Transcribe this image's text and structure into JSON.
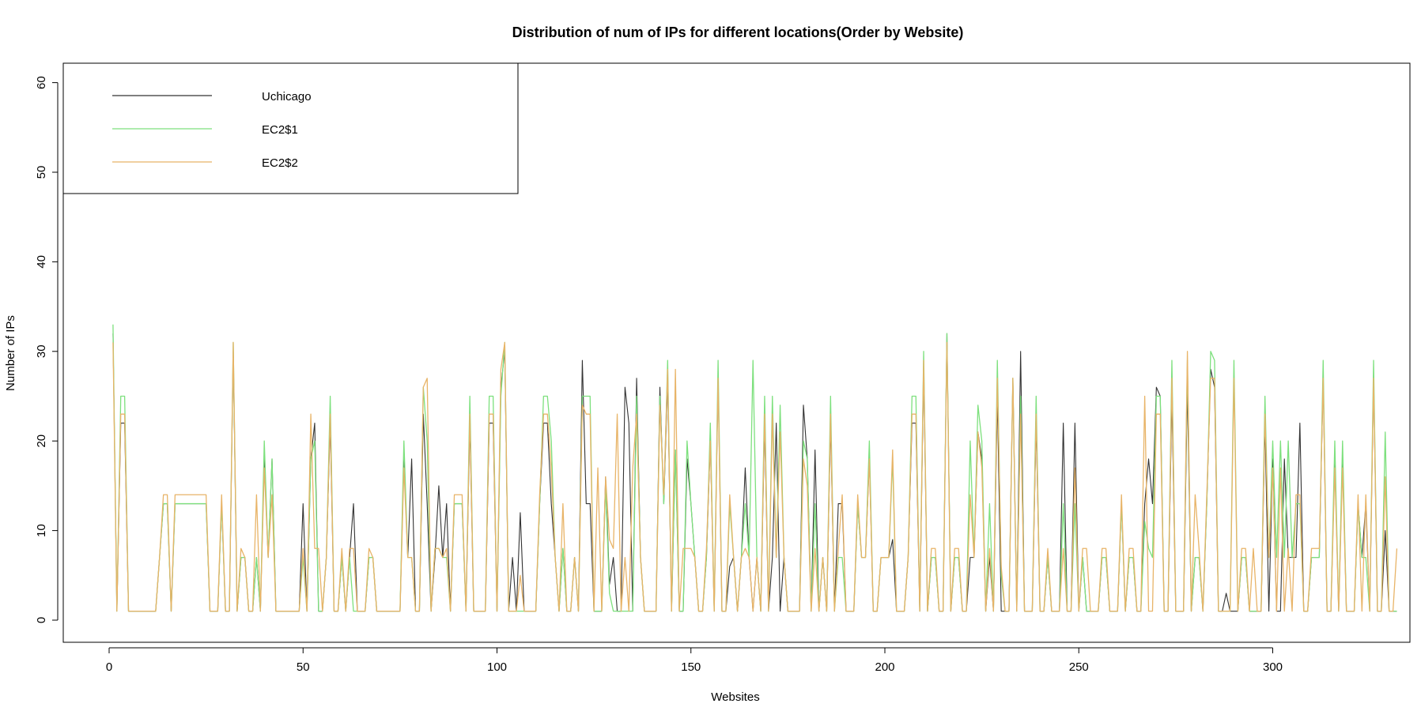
{
  "chart_data": {
    "type": "line",
    "title": "Distribution of num of IPs for different locations(Order by Website)",
    "xlabel": "Websites",
    "ylabel": "Number of IPs",
    "xlim": [
      1,
      322
    ],
    "ylim": [
      0,
      60
    ],
    "xticks": [
      0,
      50,
      100,
      150,
      200,
      250,
      300
    ],
    "yticks": [
      0,
      10,
      20,
      30,
      40,
      50,
      60
    ],
    "legend_position": "top-left",
    "grid": false,
    "series": [
      {
        "name": "Uchicago",
        "color": "#333333",
        "values": [
          32,
          1,
          22,
          22,
          1,
          1,
          1,
          1,
          1,
          1,
          1,
          1,
          7,
          13,
          13,
          1,
          13,
          13,
          13,
          13,
          13,
          13,
          13,
          13,
          13,
          1,
          1,
          1,
          13,
          1,
          1,
          30,
          1,
          7,
          7,
          1,
          1,
          7,
          1,
          18,
          7,
          18,
          1,
          1,
          1,
          1,
          1,
          1,
          1,
          13,
          1,
          18,
          22,
          1,
          1,
          7,
          22,
          1,
          1,
          7,
          1,
          7,
          13,
          1,
          1,
          1,
          7,
          7,
          1,
          1,
          1,
          1,
          1,
          1,
          1,
          18,
          7,
          18,
          1,
          1,
          23,
          13,
          1,
          7,
          15,
          7,
          13,
          1,
          13,
          13,
          13,
          1,
          22,
          1,
          1,
          1,
          1,
          22,
          22,
          1,
          26,
          30,
          1,
          7,
          1,
          12,
          1,
          1,
          1,
          1,
          13,
          22,
          22,
          13,
          7,
          1,
          8,
          1,
          1,
          7,
          1,
          29,
          13,
          13,
          1,
          1,
          1,
          16,
          4,
          7,
          1,
          1,
          26,
          22,
          1,
          27,
          7,
          1,
          1,
          1,
          1,
          26,
          13,
          27,
          1,
          19,
          1,
          1,
          18,
          13,
          7,
          1,
          1,
          7,
          20,
          1,
          27,
          1,
          1,
          6,
          7,
          1,
          7,
          17,
          7,
          1,
          7,
          1,
          22,
          1,
          7,
          22,
          1,
          7,
          1,
          1,
          1,
          1,
          24,
          18,
          1,
          19,
          1,
          7,
          1,
          22,
          1,
          13,
          13,
          1,
          1,
          1,
          13,
          7,
          7,
          18,
          1,
          1,
          7,
          7,
          7,
          9,
          1,
          1,
          1,
          7,
          22,
          22,
          1,
          28,
          1,
          7,
          7,
          1,
          1,
          32,
          1,
          7,
          7,
          1,
          1,
          7,
          7,
          21,
          18,
          1,
          7,
          1,
          25,
          1,
          1,
          1,
          27,
          1,
          30,
          1,
          1,
          1,
          22,
          1,
          1,
          7,
          1,
          1,
          1,
          22,
          1,
          1,
          22,
          1,
          7,
          1,
          1,
          1,
          1,
          7,
          7,
          1,
          1,
          1,
          13,
          1,
          7,
          7,
          1,
          1,
          13,
          18,
          13,
          26,
          25,
          1,
          1,
          25,
          1,
          1,
          1,
          26,
          1,
          7,
          7,
          1,
          13,
          28,
          26,
          1,
          1,
          3,
          1,
          1,
          1,
          7,
          7,
          1,
          1,
          1,
          1,
          22,
          1,
          18,
          1,
          1,
          18,
          7,
          7,
          7,
          22,
          1,
          1,
          7,
          7,
          7,
          27,
          1,
          1,
          18,
          1,
          18,
          1,
          1,
          1,
          13,
          7,
          13,
          1,
          27,
          1,
          1,
          10,
          1,
          1,
          1
        ]
      },
      {
        "name": "EC2$1",
        "color": "#7de07d",
        "values": [
          33,
          1,
          25,
          25,
          1,
          1,
          1,
          1,
          1,
          1,
          1,
          1,
          7,
          13,
          13,
          1,
          13,
          13,
          13,
          13,
          13,
          13,
          13,
          13,
          13,
          1,
          1,
          1,
          13,
          1,
          1,
          31,
          1,
          7,
          7,
          1,
          1,
          7,
          1,
          20,
          7,
          18,
          1,
          1,
          1,
          1,
          1,
          1,
          1,
          7,
          1,
          18,
          20,
          1,
          1,
          7,
          25,
          1,
          1,
          7,
          1,
          7,
          1,
          1,
          1,
          1,
          7,
          7,
          1,
          1,
          1,
          1,
          1,
          1,
          1,
          20,
          7,
          7,
          1,
          1,
          26,
          20,
          1,
          8,
          8,
          7,
          7,
          1,
          13,
          13,
          13,
          1,
          25,
          1,
          1,
          1,
          1,
          25,
          25,
          1,
          25,
          31,
          1,
          1,
          1,
          1,
          1,
          1,
          1,
          1,
          13,
          25,
          25,
          20,
          7,
          1,
          8,
          1,
          1,
          7,
          1,
          25,
          25,
          25,
          1,
          1,
          1,
          15,
          3,
          1,
          1,
          1,
          1,
          1,
          1,
          25,
          7,
          1,
          1,
          1,
          1,
          25,
          13,
          29,
          1,
          19,
          1,
          1,
          20,
          13,
          7,
          1,
          1,
          7,
          22,
          1,
          29,
          1,
          1,
          13,
          7,
          1,
          7,
          13,
          7,
          29,
          7,
          1,
          25,
          1,
          25,
          7,
          24,
          7,
          1,
          1,
          1,
          1,
          20,
          18,
          1,
          13,
          1,
          7,
          1,
          25,
          1,
          7,
          7,
          1,
          1,
          1,
          13,
          7,
          7,
          20,
          1,
          1,
          7,
          7,
          7,
          18,
          1,
          1,
          1,
          7,
          25,
          25,
          1,
          30,
          1,
          7,
          7,
          1,
          1,
          32,
          1,
          7,
          7,
          1,
          1,
          20,
          7,
          24,
          20,
          1,
          13,
          1,
          29,
          5,
          1,
          1,
          27,
          1,
          25,
          1,
          1,
          1,
          25,
          1,
          1,
          7,
          1,
          1,
          1,
          13,
          1,
          1,
          13,
          1,
          7,
          1,
          1,
          1,
          1,
          7,
          7,
          1,
          1,
          1,
          13,
          1,
          7,
          7,
          1,
          1,
          11,
          8,
          7,
          25,
          25,
          1,
          1,
          29,
          1,
          1,
          1,
          29,
          1,
          7,
          7,
          1,
          13,
          30,
          29,
          1,
          1,
          1,
          1,
          29,
          1,
          7,
          7,
          1,
          1,
          1,
          1,
          25,
          7,
          20,
          7,
          20,
          7,
          20,
          7,
          13,
          13,
          1,
          1,
          7,
          7,
          7,
          29,
          1,
          1,
          20,
          1,
          20,
          1,
          1,
          1,
          13,
          7,
          7,
          1,
          29,
          1,
          1,
          21,
          1,
          1,
          1
        ]
      },
      {
        "name": "EC2$2",
        "color": "#e8b468",
        "values": [
          31,
          1,
          23,
          23,
          1,
          1,
          1,
          1,
          1,
          1,
          1,
          1,
          7,
          14,
          14,
          1,
          14,
          14,
          14,
          14,
          14,
          14,
          14,
          14,
          14,
          1,
          1,
          1,
          14,
          1,
          1,
          31,
          1,
          8,
          7,
          1,
          1,
          14,
          1,
          17,
          7,
          14,
          1,
          1,
          1,
          1,
          1,
          1,
          1,
          8,
          1,
          23,
          8,
          8,
          1,
          7,
          23,
          1,
          1,
          8,
          1,
          8,
          8,
          1,
          1,
          1,
          8,
          7,
          1,
          1,
          1,
          1,
          1,
          1,
          1,
          17,
          7,
          7,
          1,
          1,
          26,
          27,
          1,
          8,
          8,
          7,
          8,
          1,
          14,
          14,
          14,
          1,
          23,
          1,
          1,
          1,
          1,
          23,
          23,
          1,
          28,
          31,
          1,
          1,
          1,
          5,
          1,
          1,
          1,
          1,
          14,
          23,
          23,
          17,
          7,
          1,
          13,
          1,
          1,
          7,
          1,
          24,
          23,
          23,
          1,
          17,
          1,
          16,
          9,
          8,
          23,
          1,
          7,
          1,
          17,
          23,
          7,
          1,
          1,
          1,
          1,
          24,
          14,
          28,
          1,
          28,
          1,
          8,
          8,
          8,
          7,
          1,
          1,
          8,
          20,
          1,
          27,
          1,
          1,
          14,
          7,
          1,
          7,
          8,
          7,
          1,
          7,
          1,
          23,
          1,
          23,
          7,
          21,
          7,
          1,
          1,
          1,
          1,
          18,
          15,
          1,
          8,
          1,
          7,
          1,
          23,
          1,
          8,
          14,
          1,
          1,
          1,
          14,
          7,
          7,
          18,
          1,
          1,
          7,
          7,
          7,
          19,
          1,
          1,
          1,
          7,
          23,
          23,
          1,
          29,
          1,
          8,
          8,
          1,
          1,
          31,
          1,
          8,
          8,
          1,
          1,
          14,
          7,
          21,
          17,
          1,
          8,
          1,
          27,
          6,
          1,
          1,
          27,
          1,
          23,
          1,
          1,
          1,
          23,
          1,
          1,
          8,
          1,
          1,
          1,
          8,
          1,
          1,
          17,
          1,
          8,
          8,
          1,
          1,
          1,
          8,
          8,
          1,
          1,
          1,
          14,
          1,
          8,
          8,
          1,
          1,
          25,
          1,
          1,
          23,
          23,
          1,
          1,
          27,
          1,
          1,
          1,
          30,
          1,
          14,
          8,
          1,
          14,
          27,
          27,
          1,
          1,
          1,
          1,
          27,
          1,
          8,
          8,
          1,
          8,
          1,
          1,
          23,
          7,
          17,
          1,
          17,
          1,
          8,
          1,
          14,
          14,
          1,
          1,
          8,
          8,
          8,
          27,
          1,
          1,
          17,
          1,
          17,
          1,
          1,
          1,
          14,
          1,
          14,
          1,
          27,
          1,
          1,
          16,
          1,
          1,
          8
        ]
      }
    ]
  }
}
